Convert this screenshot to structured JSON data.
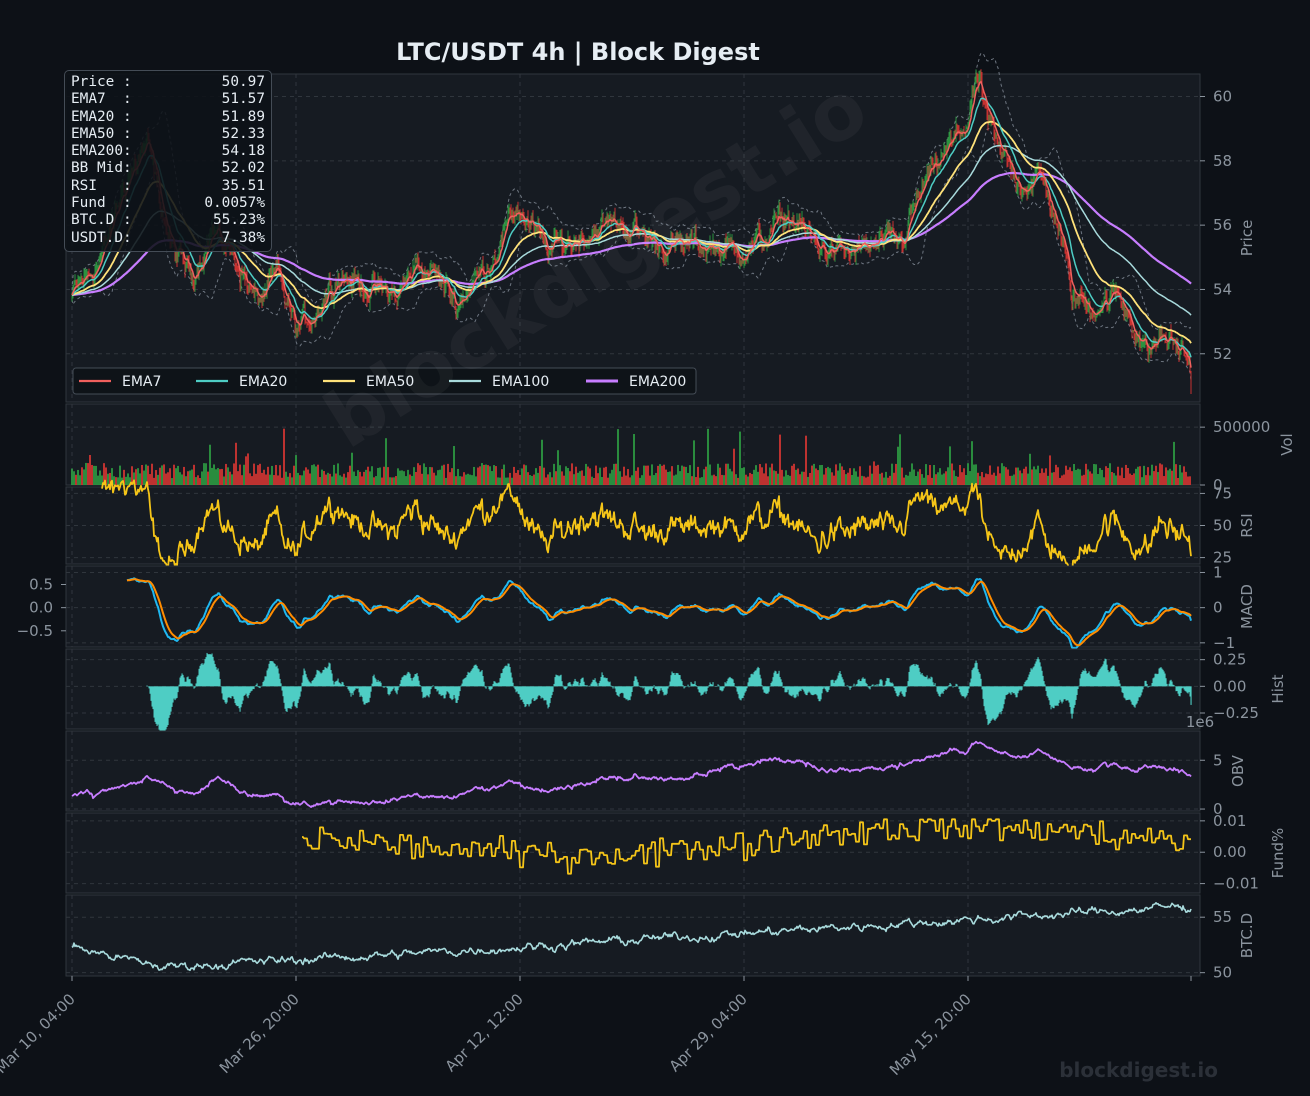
{
  "title": "LTC/USDT  4h  |  Block Digest",
  "watermark": "blockdigest.io",
  "watermark_small": "blockdigest.io",
  "info_box": [
    {
      "label": "Price :",
      "value": "50.97"
    },
    {
      "label": "EMA7  :",
      "value": "51.57"
    },
    {
      "label": "EMA20 :",
      "value": "51.89"
    },
    {
      "label": "EMA50 :",
      "value": "52.33"
    },
    {
      "label": "EMA200:",
      "value": "54.18"
    },
    {
      "label": "BB Mid:",
      "value": "52.02"
    },
    {
      "label": "RSI   :",
      "value": "35.51"
    },
    {
      "label": "Fund  :",
      "value": "0.0057%"
    },
    {
      "label": "BTC.D :",
      "value": "55.23%"
    },
    {
      "label": "USDT.D:",
      "value": "7.38%"
    }
  ],
  "colors": {
    "background": "#0d1117",
    "panel": "#161b22",
    "ema7": "#f0605d",
    "ema20": "#4ecdc4",
    "ema50": "#ffe27a",
    "ema100": "#a8dadc",
    "ema200": "#c77dff",
    "up": "#2ea043",
    "down": "#da3633",
    "rsi": "#f5c518",
    "macd": "#1fb8f0",
    "signal": "#ff8c00",
    "hist": "#4ecdc4",
    "obv": "#c77dff",
    "funding": "#f5c518",
    "btcd": "#a8dadc"
  },
  "chart_data": {
    "type": "line",
    "x_ticks": [
      "Mar 10, 04:00",
      "Mar 26, 20:00",
      "Apr 12, 12:00",
      "Apr 29, 04:00",
      "May 15, 20:00"
    ],
    "price_panel": {
      "ylabel": "Price",
      "yticks": [
        "52",
        "54",
        "56",
        "58",
        "60"
      ],
      "ylim": [
        50.5,
        60.7
      ],
      "legend": [
        "EMA7",
        "EMA20",
        "EMA50",
        "EMA100",
        "EMA200"
      ],
      "legend_position": "lower-left",
      "close_keypoints": [
        [
          0,
          53.8
        ],
        [
          30,
          55.0
        ],
        [
          55,
          57.5
        ],
        [
          75,
          58.5
        ],
        [
          100,
          55.2
        ],
        [
          120,
          54.5
        ],
        [
          140,
          55.8
        ],
        [
          160,
          55.2
        ],
        [
          185,
          53.6
        ],
        [
          205,
          54.4
        ],
        [
          225,
          52.7
        ],
        [
          245,
          53.4
        ],
        [
          265,
          54.5
        ],
        [
          300,
          54.0
        ],
        [
          325,
          53.8
        ],
        [
          345,
          54.8
        ],
        [
          365,
          54.4
        ],
        [
          385,
          53.6
        ],
        [
          420,
          55.0
        ],
        [
          445,
          56.6
        ],
        [
          475,
          55.2
        ],
        [
          500,
          55.5
        ],
        [
          525,
          55.9
        ],
        [
          545,
          56.1
        ],
        [
          575,
          55.6
        ],
        [
          600,
          55.3
        ],
        [
          630,
          55.4
        ],
        [
          665,
          55.2
        ],
        [
          690,
          55.5
        ],
        [
          715,
          56.3
        ],
        [
          745,
          55.4
        ],
        [
          770,
          55.1
        ],
        [
          800,
          55.3
        ],
        [
          830,
          55.5
        ],
        [
          848,
          57.0
        ],
        [
          870,
          58.1
        ],
        [
          895,
          59.2
        ],
        [
          905,
          60.5
        ],
        [
          925,
          58.3
        ],
        [
          950,
          57.3
        ],
        [
          968,
          57.5
        ],
        [
          985,
          56.2
        ],
        [
          1000,
          53.8
        ],
        [
          1020,
          53.5
        ],
        [
          1045,
          53.8
        ],
        [
          1060,
          53.1
        ],
        [
          1075,
          52.0
        ],
        [
          1090,
          52.6
        ],
        [
          1115,
          51.9
        ],
        [
          1137,
          51.1
        ],
        [
          1160,
          52.2
        ],
        [
          1175,
          52.0
        ],
        [
          1191,
          50.97
        ]
      ],
      "last_values": {
        "close": 50.97,
        "ema7": 51.57,
        "ema20": 51.89,
        "ema50": 52.33,
        "ema100": 53.2,
        "ema200": 54.18
      }
    },
    "volume_panel": {
      "ylabel": "Vol",
      "yticks": [
        "0",
        "500000"
      ],
      "ylim": [
        0,
        700000
      ]
    },
    "rsi_panel": {
      "ylabel": "RSI",
      "yticks": [
        "25",
        "50",
        "75"
      ],
      "ylim": [
        20,
        80
      ],
      "last": 35.51
    },
    "macd_panel": {
      "ylabel": "MACD",
      "left_yticks": [
        "−0.5",
        "0.0",
        "0.5"
      ],
      "right_yticks": [
        "−1",
        "0",
        "1"
      ],
      "ylim": [
        -0.85,
        0.9
      ]
    },
    "hist_panel": {
      "ylabel": "Hist",
      "yticks": [
        "−0.25",
        "0.00",
        "0.25"
      ],
      "ylim": [
        -0.4,
        0.35
      ]
    },
    "obv_panel": {
      "ylabel": "OBV",
      "yticks": [
        "0",
        "5"
      ],
      "offset_label": "1e6",
      "ylim": [
        -0.2,
        8.0
      ]
    },
    "funding_panel": {
      "ylabel": "Fund%",
      "yticks": [
        "−0.01",
        "0.00",
        "0.01"
      ],
      "ylim": [
        -0.013,
        0.0125
      ]
    },
    "btcd_panel": {
      "ylabel": "BTC.D",
      "yticks": [
        "50",
        "55"
      ],
      "ylim": [
        49.7,
        57.0
      ]
    }
  }
}
